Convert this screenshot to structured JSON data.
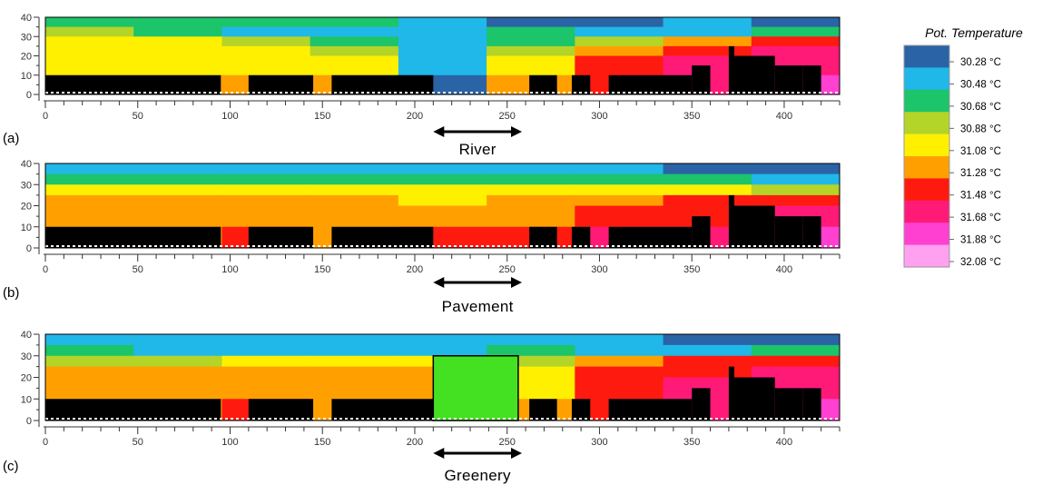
{
  "colorbar": {
    "title": "Pot. Temperature",
    "labels": [
      "30.28 °C",
      "30.48 °C",
      "30.68 °C",
      "30.88 °C",
      "31.08 °C",
      "31.28 °C",
      "31.48 °C",
      "31.68 °C",
      "31.88 °C",
      "32.08 °C"
    ],
    "colors": [
      "#2a64a6",
      "#20b8e8",
      "#1cc46a",
      "#b4d428",
      "#fff000",
      "#ffa000",
      "#ff1a10",
      "#ff1a78",
      "#ff40d0",
      "#ffa0f0"
    ]
  },
  "colors": {
    "building": "#000000",
    "greenery": "#44e122"
  },
  "chart_data": [
    {
      "type": "heatmap",
      "panel_label": "(a)",
      "annotation": "River",
      "xlim": [
        0,
        430
      ],
      "ylim": [
        0,
        40
      ],
      "xticks": [
        0,
        50,
        100,
        150,
        200,
        250,
        300,
        350,
        400
      ],
      "yticks": [
        0,
        10,
        20,
        30,
        40
      ],
      "value_bands": [
        {
          "y": [
            35,
            40
          ],
          "runs": [
            [
              0,
              4,
              2
            ],
            [
              4,
              5,
              1
            ],
            [
              5,
              7,
              0
            ],
            [
              7,
              8,
              1
            ],
            [
              8,
              9,
              0
            ]
          ]
        },
        {
          "y": [
            30,
            35
          ],
          "runs": [
            [
              0,
              1,
              3
            ],
            [
              1,
              2,
              2
            ],
            [
              2,
              4,
              1
            ],
            [
              4,
              5,
              1
            ],
            [
              5,
              6,
              2
            ],
            [
              6,
              7,
              1
            ],
            [
              7,
              8,
              1
            ],
            [
              8,
              9,
              2
            ]
          ]
        },
        {
          "y": [
            25,
            30
          ],
          "runs": [
            [
              0,
              2,
              4
            ],
            [
              2,
              3,
              3
            ],
            [
              3,
              4,
              2
            ],
            [
              4,
              5,
              1
            ],
            [
              5,
              6,
              2
            ],
            [
              6,
              7,
              3
            ],
            [
              7,
              8,
              5
            ],
            [
              8,
              9,
              6
            ]
          ]
        },
        {
          "y": [
            20,
            25
          ],
          "runs": [
            [
              0,
              2,
              4
            ],
            [
              2,
              3,
              4
            ],
            [
              3,
              4,
              3
            ],
            [
              4,
              5,
              1
            ],
            [
              5,
              6,
              3
            ],
            [
              6,
              7,
              5
            ],
            [
              7,
              8,
              6
            ],
            [
              8,
              9,
              7
            ]
          ]
        },
        {
          "y": [
            10,
            20
          ],
          "runs": [
            [
              0,
              2,
              4
            ],
            [
              2,
              3,
              4
            ],
            [
              3,
              4,
              4
            ],
            [
              4,
              5,
              1
            ],
            [
              5,
              6,
              4
            ],
            [
              6,
              7,
              6
            ],
            [
              7,
              8,
              7
            ],
            [
              8,
              9,
              7
            ]
          ]
        },
        {
          "y": [
            0,
            10
          ],
          "runs": [
            [
              0,
              2,
              5
            ],
            [
              2,
              3,
              5
            ],
            [
              3,
              4,
              5
            ],
            [
              4,
              5,
              0
            ],
            [
              5,
              6,
              5
            ],
            [
              6,
              7,
              6
            ],
            [
              7,
              8,
              7
            ],
            [
              8,
              9,
              8
            ]
          ]
        }
      ],
      "buildings": [
        {
          "x": [
            0,
            95
          ],
          "height": 10
        },
        {
          "x": [
            110,
            145
          ],
          "height": 10
        },
        {
          "x": [
            155,
            210
          ],
          "height": 10
        },
        {
          "x": [
            262,
            277
          ],
          "height": 10
        },
        {
          "x": [
            285,
            295
          ],
          "height": 10
        },
        {
          "x": [
            305,
            350
          ],
          "height": 10
        },
        {
          "x": [
            350,
            360
          ],
          "height": 15
        },
        {
          "x": [
            370,
            373
          ],
          "height": 25
        },
        {
          "x": [
            373,
            395
          ],
          "height": 20
        },
        {
          "x": [
            395,
            410
          ],
          "height": 15
        },
        {
          "x": [
            410,
            420
          ],
          "height": 15
        }
      ]
    },
    {
      "type": "heatmap",
      "panel_label": "(b)",
      "annotation": "Pavement",
      "xlim": [
        0,
        430
      ],
      "ylim": [
        0,
        40
      ],
      "xticks": [
        0,
        50,
        100,
        150,
        200,
        250,
        300,
        350,
        400
      ],
      "yticks": [
        0,
        10,
        20,
        30,
        40
      ],
      "value_bands": [
        {
          "y": [
            35,
            40
          ],
          "runs": [
            [
              0,
              4,
              1
            ],
            [
              4,
              5,
              1
            ],
            [
              5,
              7,
              1
            ],
            [
              7,
              8,
              0
            ],
            [
              8,
              9,
              0
            ]
          ]
        },
        {
          "y": [
            30,
            35
          ],
          "runs": [
            [
              0,
              1,
              2
            ],
            [
              1,
              2,
              2
            ],
            [
              2,
              4,
              2
            ],
            [
              4,
              5,
              2
            ],
            [
              5,
              6,
              2
            ],
            [
              6,
              7,
              2
            ],
            [
              7,
              8,
              2
            ],
            [
              8,
              9,
              1
            ]
          ]
        },
        {
          "y": [
            25,
            30
          ],
          "runs": [
            [
              0,
              2,
              4
            ],
            [
              2,
              3,
              4
            ],
            [
              3,
              4,
              4
            ],
            [
              4,
              5,
              4
            ],
            [
              5,
              6,
              4
            ],
            [
              6,
              7,
              4
            ],
            [
              7,
              8,
              4
            ],
            [
              8,
              9,
              3
            ]
          ]
        },
        {
          "y": [
            20,
            25
          ],
          "runs": [
            [
              0,
              2,
              5
            ],
            [
              2,
              3,
              5
            ],
            [
              3,
              4,
              5
            ],
            [
              4,
              5,
              4
            ],
            [
              5,
              6,
              5
            ],
            [
              6,
              7,
              5
            ],
            [
              7,
              8,
              6
            ],
            [
              8,
              9,
              6
            ]
          ]
        },
        {
          "y": [
            10,
            20
          ],
          "runs": [
            [
              0,
              2,
              5
            ],
            [
              2,
              3,
              5
            ],
            [
              3,
              4,
              5
            ],
            [
              4,
              5,
              5
            ],
            [
              5,
              6,
              5
            ],
            [
              6,
              7,
              6
            ],
            [
              7,
              8,
              6
            ],
            [
              8,
              9,
              7
            ]
          ]
        },
        {
          "y": [
            0,
            10
          ],
          "runs": [
            [
              0,
              2,
              5
            ],
            [
              2,
              3,
              6
            ],
            [
              3,
              4,
              5
            ],
            [
              4,
              5,
              6
            ],
            [
              5,
              6,
              6
            ],
            [
              6,
              7,
              7
            ],
            [
              7,
              8,
              7
            ],
            [
              8,
              9,
              8
            ]
          ]
        }
      ],
      "buildings": [
        {
          "x": [
            0,
            95
          ],
          "height": 10
        },
        {
          "x": [
            110,
            145
          ],
          "height": 10
        },
        {
          "x": [
            155,
            210
          ],
          "height": 10
        },
        {
          "x": [
            262,
            277
          ],
          "height": 10
        },
        {
          "x": [
            285,
            295
          ],
          "height": 10
        },
        {
          "x": [
            305,
            350
          ],
          "height": 10
        },
        {
          "x": [
            350,
            360
          ],
          "height": 15
        },
        {
          "x": [
            370,
            373
          ],
          "height": 25
        },
        {
          "x": [
            373,
            395
          ],
          "height": 20
        },
        {
          "x": [
            395,
            410
          ],
          "height": 15
        },
        {
          "x": [
            410,
            420
          ],
          "height": 15
        }
      ]
    },
    {
      "type": "heatmap",
      "panel_label": "(c)",
      "annotation": "Greenery",
      "xlim": [
        0,
        430
      ],
      "ylim": [
        0,
        40
      ],
      "xticks": [
        0,
        50,
        100,
        150,
        200,
        250,
        300,
        350,
        400
      ],
      "yticks": [
        0,
        10,
        20,
        30,
        40
      ],
      "value_bands": [
        {
          "y": [
            35,
            40
          ],
          "runs": [
            [
              0,
              4,
              1
            ],
            [
              4,
              5,
              1
            ],
            [
              5,
              7,
              1
            ],
            [
              7,
              8,
              0
            ],
            [
              8,
              9,
              0
            ]
          ]
        },
        {
          "y": [
            30,
            35
          ],
          "runs": [
            [
              0,
              1,
              2
            ],
            [
              1,
              2,
              1
            ],
            [
              2,
              4,
              1
            ],
            [
              4,
              5,
              1
            ],
            [
              5,
              6,
              2
            ],
            [
              6,
              7,
              1
            ],
            [
              7,
              8,
              1
            ],
            [
              8,
              9,
              2
            ]
          ]
        },
        {
          "y": [
            25,
            30
          ],
          "runs": [
            [
              0,
              2,
              3
            ],
            [
              2,
              3,
              4
            ],
            [
              3,
              4,
              4
            ],
            [
              4,
              5,
              4
            ],
            [
              5,
              6,
              3
            ],
            [
              6,
              7,
              5
            ],
            [
              7,
              8,
              6
            ],
            [
              8,
              9,
              6
            ]
          ]
        },
        {
          "y": [
            20,
            25
          ],
          "runs": [
            [
              0,
              2,
              5
            ],
            [
              2,
              3,
              5
            ],
            [
              3,
              4,
              5
            ],
            [
              4,
              5,
              5
            ],
            [
              5,
              6,
              4
            ],
            [
              6,
              7,
              6
            ],
            [
              7,
              8,
              6
            ],
            [
              8,
              9,
              7
            ]
          ]
        },
        {
          "y": [
            10,
            20
          ],
          "runs": [
            [
              0,
              2,
              5
            ],
            [
              2,
              3,
              5
            ],
            [
              3,
              4,
              5
            ],
            [
              4,
              5,
              5
            ],
            [
              5,
              6,
              4
            ],
            [
              6,
              7,
              6
            ],
            [
              7,
              8,
              7
            ],
            [
              8,
              9,
              7
            ]
          ]
        },
        {
          "y": [
            0,
            10
          ],
          "runs": [
            [
              0,
              2,
              5
            ],
            [
              2,
              3,
              6
            ],
            [
              3,
              4,
              5
            ],
            [
              4,
              5,
              5
            ],
            [
              5,
              6,
              5
            ],
            [
              6,
              7,
              6
            ],
            [
              7,
              8,
              7
            ],
            [
              8,
              9,
              8
            ]
          ]
        }
      ],
      "buildings": [
        {
          "x": [
            0,
            95
          ],
          "height": 10
        },
        {
          "x": [
            110,
            145
          ],
          "height": 10
        },
        {
          "x": [
            155,
            210
          ],
          "height": 10
        },
        {
          "x": [
            262,
            277
          ],
          "height": 10
        },
        {
          "x": [
            285,
            295
          ],
          "height": 10
        },
        {
          "x": [
            305,
            350
          ],
          "height": 10
        },
        {
          "x": [
            350,
            360
          ],
          "height": 15
        },
        {
          "x": [
            370,
            373
          ],
          "height": 25
        },
        {
          "x": [
            373,
            395
          ],
          "height": 20
        },
        {
          "x": [
            395,
            410
          ],
          "height": 15
        },
        {
          "x": [
            410,
            420
          ],
          "height": 15
        }
      ],
      "greenery": {
        "x": [
          210,
          256
        ],
        "height": 30
      }
    }
  ]
}
